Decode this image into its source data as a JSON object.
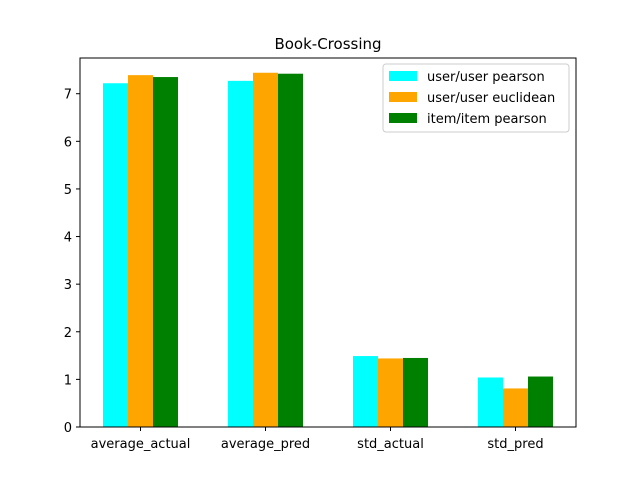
{
  "chart_data": {
    "type": "bar",
    "title": "Book-Crossing",
    "xlabel": "",
    "ylabel": "",
    "categories": [
      "average_actual",
      "average_pred",
      "std_actual",
      "std_pred"
    ],
    "series": [
      {
        "name": "user/user pearson",
        "color": "#00ffff",
        "values": [
          7.22,
          7.27,
          1.49,
          1.04
        ]
      },
      {
        "name": "user/user euclidean",
        "color": "#ffa500",
        "values": [
          7.39,
          7.44,
          1.44,
          0.81
        ]
      },
      {
        "name": "item/item pearson",
        "color": "#008000",
        "values": [
          7.35,
          7.42,
          1.45,
          1.06
        ]
      }
    ],
    "ylim": [
      0,
      7.75
    ],
    "yticks": [
      0,
      1,
      2,
      3,
      4,
      5,
      6,
      7
    ],
    "grid": false,
    "legend_position": "top-right"
  }
}
